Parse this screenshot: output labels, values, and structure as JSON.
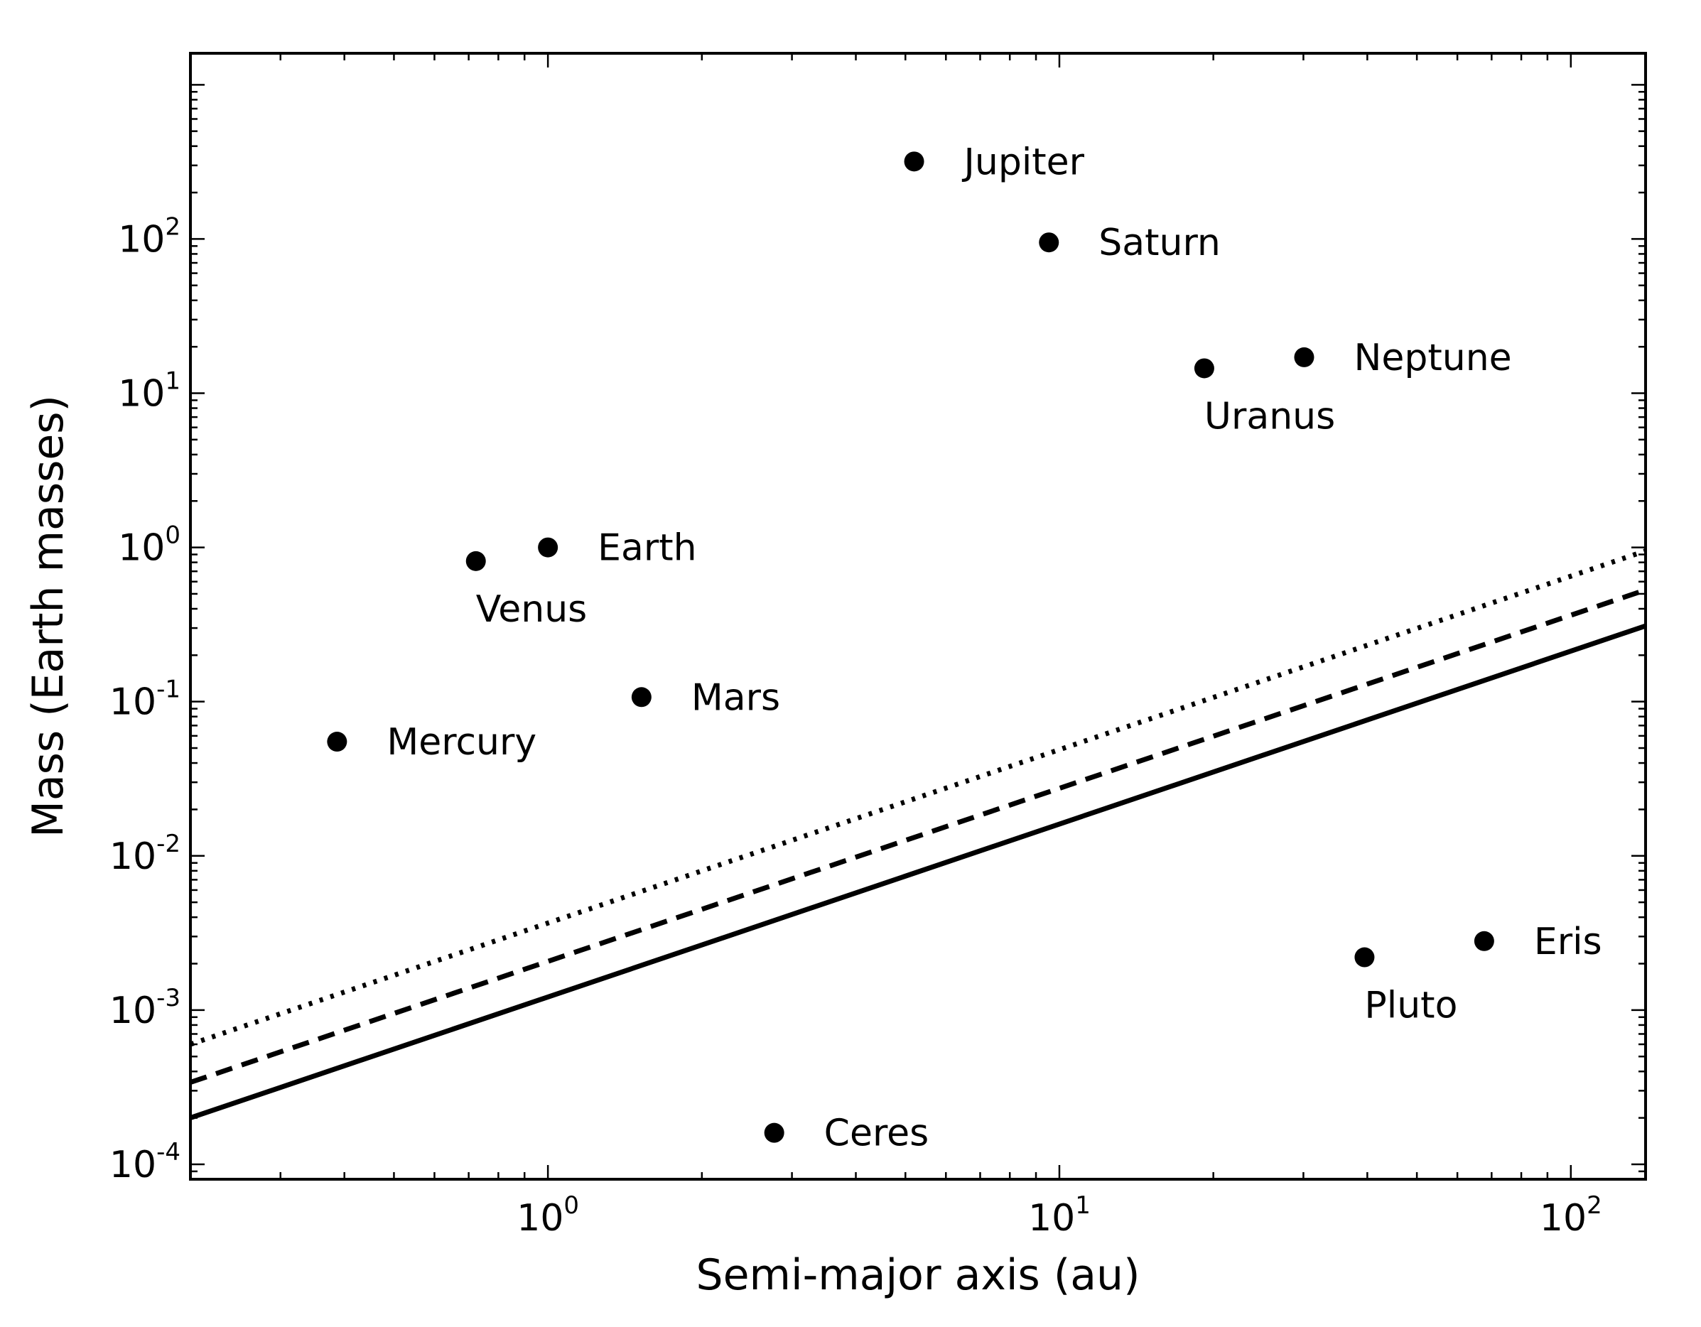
{
  "chart_data": {
    "type": "scatter",
    "title": "",
    "xlabel": "Semi-major axis (au)",
    "ylabel": "Mass (Earth masses)",
    "xscale": "log",
    "yscale": "log",
    "xlim": [
      0.2,
      140
    ],
    "ylim": [
      8e-05,
      1600
    ],
    "grid": false,
    "legend": "none",
    "x_ticks": [
      {
        "value": 1,
        "base": "10",
        "exp": "0"
      },
      {
        "value": 10,
        "base": "10",
        "exp": "1"
      },
      {
        "value": 100,
        "base": "10",
        "exp": "2"
      }
    ],
    "y_ticks": [
      {
        "value": 0.0001,
        "base": "10",
        "exp": "-4"
      },
      {
        "value": 0.001,
        "base": "10",
        "exp": "-3"
      },
      {
        "value": 0.01,
        "base": "10",
        "exp": "-2"
      },
      {
        "value": 0.1,
        "base": "10",
        "exp": "-1"
      },
      {
        "value": 1,
        "base": "10",
        "exp": "0"
      },
      {
        "value": 10,
        "base": "10",
        "exp": "1"
      },
      {
        "value": 100,
        "base": "10",
        "exp": "2"
      }
    ],
    "points": [
      {
        "label": "Mercury",
        "x": 0.387,
        "y": 0.055,
        "label_pos": "right"
      },
      {
        "label": "Venus",
        "x": 0.723,
        "y": 0.815,
        "label_pos": "below"
      },
      {
        "label": "Earth",
        "x": 1.0,
        "y": 1.0,
        "label_pos": "right"
      },
      {
        "label": "Mars",
        "x": 1.524,
        "y": 0.107,
        "label_pos": "right"
      },
      {
        "label": "Ceres",
        "x": 2.77,
        "y": 0.00016,
        "label_pos": "right"
      },
      {
        "label": "Jupiter",
        "x": 5.2,
        "y": 318,
        "label_pos": "right"
      },
      {
        "label": "Saturn",
        "x": 9.54,
        "y": 95,
        "label_pos": "right"
      },
      {
        "label": "Uranus",
        "x": 19.2,
        "y": 14.5,
        "label_pos": "below"
      },
      {
        "label": "Neptune",
        "x": 30.1,
        "y": 17.1,
        "label_pos": "right"
      },
      {
        "label": "Pluto",
        "x": 39.5,
        "y": 0.0022,
        "label_pos": "below"
      },
      {
        "label": "Eris",
        "x": 67.7,
        "y": 0.0028,
        "label_pos": "right"
      }
    ],
    "lines": [
      {
        "style": "solid",
        "x": [
          0.2,
          140
        ],
        "y": [
          0.0002,
          0.31
        ]
      },
      {
        "style": "dashed",
        "x": [
          0.2,
          140
        ],
        "y": [
          0.00034,
          0.53
        ]
      },
      {
        "style": "dotted",
        "x": [
          0.2,
          140
        ],
        "y": [
          0.0006,
          0.95
        ]
      }
    ],
    "colors": {
      "marker": "#000000",
      "line": "#000000",
      "axes": "#000000"
    }
  }
}
